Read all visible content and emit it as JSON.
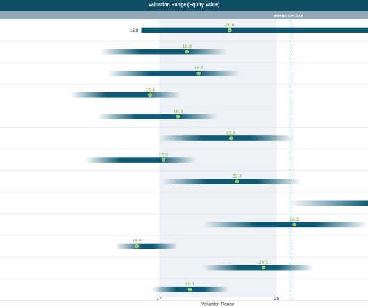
{
  "header": {
    "title": "Valuation Range (Equity Value)"
  },
  "chart_data": {
    "type": "range-bar",
    "title": "Valuation Range (Equity Value)",
    "xlabel": "Valuation Range",
    "xlim": [
      6.2,
      31.2
    ],
    "shaded_range": [
      17,
      25
    ],
    "reference_line": {
      "label": "MARKET CAP: 25.9",
      "value": 25.9
    },
    "x_ticks": [
      {
        "value": 17,
        "label": "17"
      },
      {
        "value": 25,
        "label": "25"
      }
    ],
    "min_label": "15.8",
    "rows": [
      {
        "low": 15.8,
        "high": 31.2,
        "point": 21.8,
        "label": "21.8",
        "style": "solid"
      },
      {
        "low": 13.0,
        "high": 21.6,
        "point": 18.9,
        "label": "18.9",
        "style": "fade"
      },
      {
        "low": 13.5,
        "high": 22.5,
        "point": 19.7,
        "label": "19.7",
        "style": "fade"
      },
      {
        "low": 11.0,
        "high": 18.5,
        "point": 16.4,
        "label": "16.4",
        "style": "fade"
      },
      {
        "low": 12.8,
        "high": 21.0,
        "point": 18.3,
        "label": "18.3",
        "style": "fade"
      },
      {
        "low": 17.0,
        "high": 26.2,
        "point": 21.9,
        "label": "21.9",
        "style": "fade"
      },
      {
        "low": 12.0,
        "high": 19.5,
        "point": 17.3,
        "label": "17.3",
        "style": "fade"
      },
      {
        "low": 17.2,
        "high": 26.7,
        "point": 22.3,
        "label": "22.3",
        "style": "fade"
      },
      {
        "low": 25.8,
        "high": 31.2,
        "point": null,
        "label": "",
        "style": "fade-right"
      },
      {
        "low": 20.0,
        "high": 31.2,
        "point": 26.2,
        "label": "26.2",
        "style": "fade"
      },
      {
        "low": 14.0,
        "high": 18.2,
        "point": 15.5,
        "label": "15.5",
        "style": "fade-left"
      },
      {
        "low": 20.0,
        "high": 27.5,
        "point": 24.1,
        "label": "24.1",
        "style": "fade"
      },
      {
        "low": 16.5,
        "high": 21.7,
        "point": 19.1,
        "label": "19.1",
        "style": "fade"
      }
    ],
    "colors": {
      "bar": "#0e5a75",
      "point": "#8cc63e",
      "point_label": "#6aa92c",
      "shade": "#eef1f5",
      "reference": "#3ab4c9",
      "header": "#104f66",
      "subheader": "#93a8b7",
      "row_line": "#e3e7ec"
    },
    "grid": false
  }
}
